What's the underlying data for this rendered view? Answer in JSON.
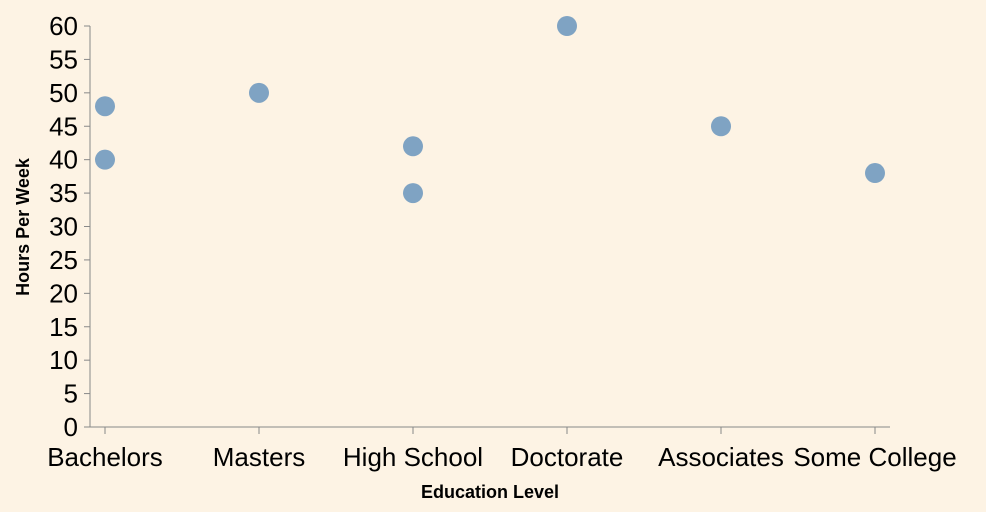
{
  "chart_data": {
    "type": "scatter",
    "title": "",
    "xlabel": "Education Level",
    "ylabel": "Hours Per Week",
    "categories": [
      "Bachelors",
      "Masters",
      "High School",
      "Doctorate",
      "Associates",
      "Some College"
    ],
    "yticks": [
      0,
      5,
      10,
      15,
      20,
      25,
      30,
      35,
      40,
      45,
      50,
      55,
      60
    ],
    "ylim": [
      0,
      60
    ],
    "grid": false,
    "point_color": "#7fa3c3",
    "points": [
      {
        "x": "Bachelors",
        "y": 48
      },
      {
        "x": "Bachelors",
        "y": 40
      },
      {
        "x": "Masters",
        "y": 50
      },
      {
        "x": "High School",
        "y": 42
      },
      {
        "x": "High School",
        "y": 35
      },
      {
        "x": "Doctorate",
        "y": 60
      },
      {
        "x": "Associates",
        "y": 45
      },
      {
        "x": "Some College",
        "y": 38
      }
    ]
  }
}
